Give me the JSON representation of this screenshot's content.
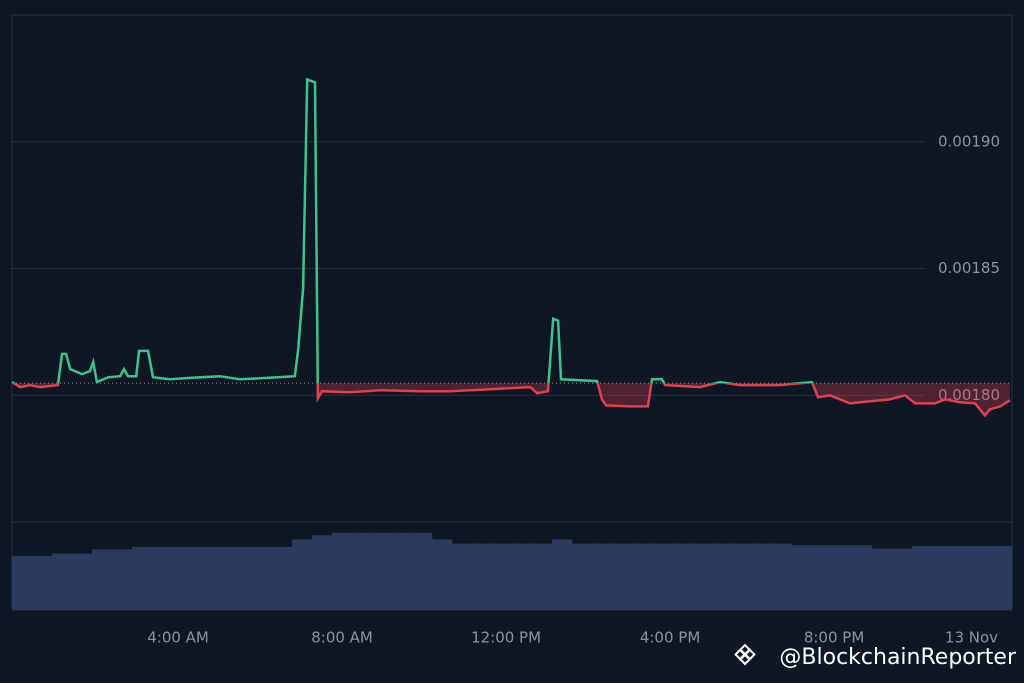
{
  "chart_data": [
    {
      "type": "line",
      "x": [
        -0.05,
        0.15,
        0.39,
        0.63,
        1.07,
        1.17,
        1.27,
        1.37,
        1.66,
        1.85,
        1.93,
        2.02,
        2.29,
        2.59,
        2.68,
        2.78,
        2.98,
        3.05,
        3.27,
        3.39,
        3.8,
        4.54,
        5.02,
        5.51,
        6.0,
        6.85,
        6.93,
        7.05,
        7.15,
        7.34,
        7.41,
        7.51,
        8.2,
        8.93,
        9.9,
        10.63,
        11.61,
        12.59,
        12.76,
        13.02,
        13.15,
        13.27,
        13.34,
        14.22,
        14.34,
        14.44,
        15.02,
        15.46,
        15.56,
        15.8,
        15.88,
        16.73,
        17.22,
        17.71,
        18.68,
        19.46,
        19.61,
        19.9,
        20.39,
        20.88,
        21.37,
        21.73,
        21.98,
        22.46,
        22.71,
        23.07,
        23.44,
        23.68,
        23.8,
        24.05,
        24.29
      ],
      "values": [
        0.0018052,
        0.0018032,
        0.001804,
        0.0018032,
        0.001804,
        0.0018163,
        0.0018163,
        0.0018103,
        0.0018083,
        0.0018095,
        0.0018131,
        0.0018052,
        0.0018071,
        0.0018075,
        0.0018103,
        0.0018075,
        0.0018075,
        0.0018175,
        0.0018175,
        0.0018071,
        0.0018063,
        0.0018071,
        0.0018075,
        0.0018063,
        0.0018067,
        0.0018075,
        0.0018183,
        0.0018421,
        0.0019246,
        0.0019234,
        0.0017988,
        0.0018016,
        0.0018012,
        0.001802,
        0.0018016,
        0.0018016,
        0.0018024,
        0.0018032,
        0.0018008,
        0.0018016,
        0.0018302,
        0.0018294,
        0.0018063,
        0.0018056,
        0.0017984,
        0.001796,
        0.0017956,
        0.0017956,
        0.0018063,
        0.0018063,
        0.001804,
        0.0018032,
        0.0018052,
        0.001804,
        0.001804,
        0.0018052,
        0.0017992,
        0.0018,
        0.0017968,
        0.0017976,
        0.0017984,
        0.0018,
        0.0017968,
        0.0017968,
        0.0017984,
        0.0017972,
        0.0017968,
        0.0017921,
        0.0017944,
        0.0017956,
        0.001798
      ],
      "baseline": 0.0018048,
      "up_color": "#3ec48a",
      "down_color": "#e0404f",
      "xlim": [
        -0.05,
        24.34
      ],
      "xticks": [
        {
          "value": 4,
          "label": "4:00 AM"
        },
        {
          "value": 8,
          "label": "8:00 AM"
        },
        {
          "value": 12,
          "label": "12:00 PM"
        },
        {
          "value": 16,
          "label": "4:00 PM"
        },
        {
          "value": 20,
          "label": "8:00 PM"
        },
        {
          "value": 24,
          "label": "13 Nov"
        }
      ],
      "ylim": [
        0.00175,
        0.00195
      ],
      "yticks": [
        {
          "value": 0.0018,
          "label": "0.00180"
        },
        {
          "value": 0.00185,
          "label": "0.00185"
        },
        {
          "value": 0.0019,
          "label": "0.00190"
        }
      ],
      "grid": true,
      "watermark": "@BlockchainReporter"
    },
    {
      "type": "bar",
      "color": "#2c3a5e",
      "ylim": [
        0,
        100
      ],
      "values": [
        65,
        65,
        68,
        68,
        73,
        73,
        76,
        76,
        76,
        76,
        76,
        76,
        76,
        76,
        85,
        90,
        93,
        93,
        93,
        93,
        93,
        85,
        80,
        80,
        80,
        80,
        80,
        85,
        80,
        80,
        80,
        80,
        80,
        80,
        80,
        80,
        80,
        80,
        80,
        78,
        78,
        78,
        78,
        74,
        74,
        77,
        77,
        77,
        77,
        77
      ]
    }
  ]
}
